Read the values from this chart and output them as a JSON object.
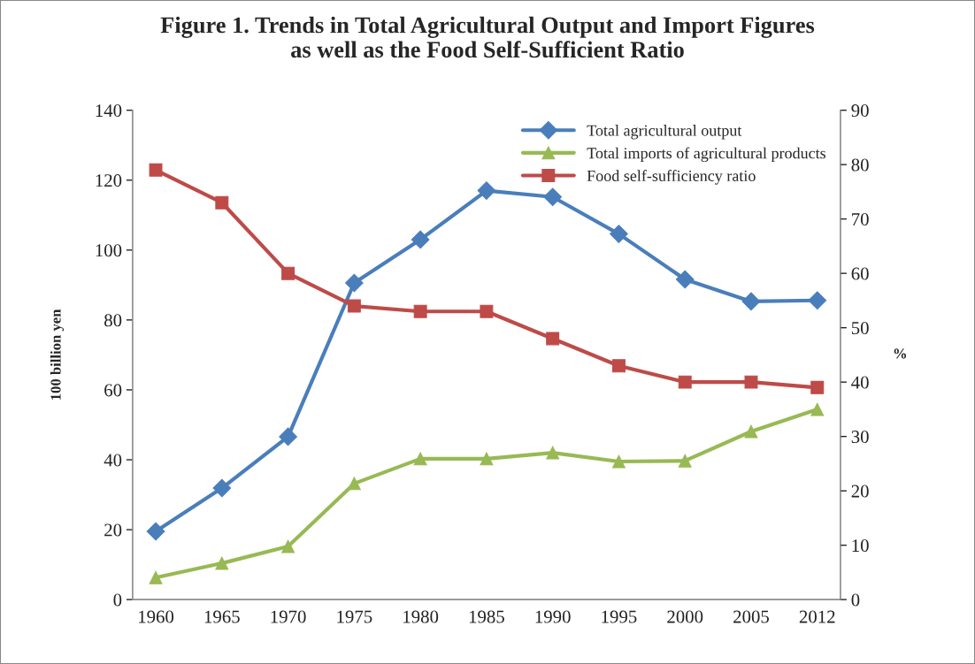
{
  "chart_data": {
    "type": "line",
    "title": "Figure 1. Trends in Total Agricultural Output and Import Figures\nas well as the Food Self-Sufficient Ratio",
    "ylabel": "100 billion yen",
    "y2label": "%",
    "categories": [
      "1960",
      "1965",
      "1970",
      "1975",
      "1980",
      "1985",
      "1990",
      "1995",
      "2000",
      "2005",
      "2012"
    ],
    "series": [
      {
        "name": "Total agricultural output",
        "color": "#4a7ebb",
        "marker": "diamond",
        "values": [
          19.5,
          31.9,
          46.6,
          90.6,
          103,
          117,
          115.2,
          104.6,
          91.6,
          85.3,
          85.6
        ]
      },
      {
        "name": "Total imports of agricultural products",
        "color": "#98b954",
        "marker": "triangle",
        "values": [
          6.3,
          10.4,
          15.2,
          33.2,
          40.3,
          40.3,
          42,
          39.5,
          39.7,
          48.1,
          54.4
        ]
      },
      {
        "name": "Food self-sufficiency ratio",
        "color": "#be4b48",
        "marker": "square",
        "axis": "y2",
        "values": [
          79,
          73,
          60,
          54,
          53,
          53,
          48,
          43,
          40,
          40,
          39
        ]
      }
    ],
    "ylim": [
      0,
      140
    ],
    "yticks": [
      0,
      20,
      40,
      60,
      80,
      100,
      120,
      140
    ],
    "y2lim": [
      0,
      90
    ],
    "y2ticks": [
      0,
      10,
      20,
      30,
      40,
      50,
      60,
      70,
      80,
      90
    ],
    "grid": false,
    "legend": "top right",
    "line_style": "solid"
  }
}
